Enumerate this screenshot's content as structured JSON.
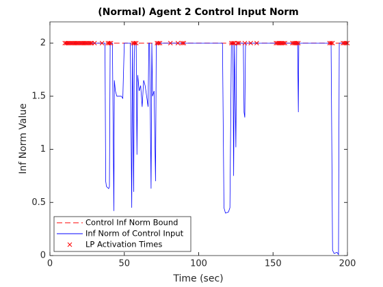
{
  "chart_data": {
    "type": "line",
    "title": "(Normal) Agent 2 Control Input Norm",
    "xlabel": "Time (sec)",
    "ylabel": "Inf Norm Value",
    "xlim": [
      0,
      200
    ],
    "ylim": [
      0,
      2.2
    ],
    "xticks": [
      0,
      50,
      100,
      150,
      200
    ],
    "yticks": [
      0,
      0.5,
      1,
      1.5,
      2
    ],
    "grid": false,
    "legend_location": "southwest",
    "series": [
      {
        "name": "Control Inf Norm Bound",
        "color": "#ff0000",
        "style": "dashed",
        "x": [
          10,
          200
        ],
        "values": [
          2,
          2
        ]
      },
      {
        "name": "Inf Norm of Control Input",
        "color": "#0000ff",
        "style": "solid",
        "x": [
          10,
          37,
          37.5,
          38,
          39.5,
          40,
          40.5,
          42,
          43,
          43.3,
          44,
          45,
          48,
          49,
          50,
          54,
          55,
          55.5,
          56.3,
          56.7,
          57,
          58,
          58.5,
          59,
          60,
          61,
          62,
          63,
          64,
          65,
          66,
          66.5,
          67,
          68,
          68.5,
          69,
          70,
          71,
          71.5,
          116,
          117,
          118,
          120,
          121,
          122,
          123,
          123.5,
          124,
          125,
          125.5,
          130,
          130.5,
          131,
          131.5,
          166.5,
          167,
          167.3,
          189,
          190,
          191,
          193,
          194,
          194.5,
          199
        ],
        "values": [
          2,
          2,
          0.7,
          0.65,
          0.63,
          0.65,
          2,
          2,
          0.42,
          1.65,
          1.55,
          1.5,
          1.5,
          1.48,
          2,
          2,
          0.45,
          2,
          0.6,
          1.85,
          2,
          2,
          0.95,
          1.7,
          1.55,
          1.6,
          1.4,
          1.65,
          1.6,
          1.5,
          1.4,
          2,
          2,
          0.63,
          2,
          1.5,
          1.55,
          0.7,
          2,
          2,
          0.45,
          0.4,
          0.41,
          0.45,
          2,
          2,
          0.75,
          2,
          1.02,
          2,
          2,
          1.35,
          1.3,
          2,
          2,
          1.35,
          2,
          2,
          0.05,
          0.02,
          0.03,
          0.01,
          2,
          2
        ]
      },
      {
        "name": "LP Activation Times",
        "color": "#ff0000",
        "style": "marker",
        "x": [
          10,
          11,
          12,
          13,
          14,
          15,
          16,
          17,
          18,
          19,
          20,
          21,
          22,
          23,
          24,
          25,
          26,
          27,
          28,
          30,
          35,
          39,
          40,
          41,
          56,
          57,
          58,
          72,
          73,
          74,
          81,
          86,
          89,
          90,
          122,
          123,
          124,
          126,
          127,
          131,
          135,
          139,
          152,
          153,
          154,
          155,
          156,
          157,
          158,
          163,
          164,
          165,
          166,
          167,
          188,
          189,
          190,
          197,
          198,
          199,
          200
        ],
        "values": [
          2,
          2,
          2,
          2,
          2,
          2,
          2,
          2,
          2,
          2,
          2,
          2,
          2,
          2,
          2,
          2,
          2,
          2,
          2,
          2,
          2,
          2,
          2,
          2,
          2,
          2,
          2,
          2,
          2,
          2,
          2,
          2,
          2,
          2,
          2,
          2,
          2,
          2,
          2,
          2,
          2,
          2,
          2,
          2,
          2,
          2,
          2,
          2,
          2,
          2,
          2,
          2,
          2,
          2,
          2,
          2,
          2,
          2,
          2,
          2,
          2
        ]
      }
    ]
  }
}
